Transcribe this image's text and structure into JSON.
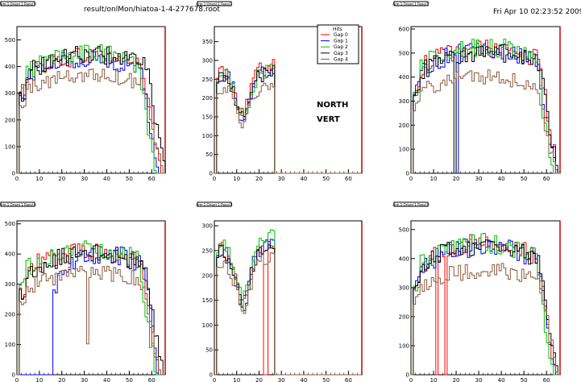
{
  "header": {
    "file_label": "result/onlMon/hiatoa-1-4-277678.root",
    "timestamp": "Fri Apr 10 02:23:52 2009"
  },
  "colors": {
    "gap0": "#ff0000",
    "gap1": "#0000ff",
    "gap2": "#00c000",
    "gap3": "#000000",
    "gap4": "#8b5a3c",
    "frame_edge": "#cc0000"
  },
  "legend": {
    "title": "Hits",
    "entries": [
      "Gap 0",
      "Gap 1",
      "Gap 2",
      "Gap 3",
      "Gap 4"
    ]
  },
  "annotations": {
    "line1": "NORTH",
    "line2": "VERT"
  },
  "chart_data": [
    {
      "type": "line",
      "title": "Arm 1 Orient 1 Panel 0",
      "xlim": [
        0,
        66
      ],
      "ylim": [
        0,
        550
      ],
      "xticks": [
        0,
        10,
        20,
        30,
        40,
        50,
        60
      ],
      "yticks": [
        0,
        100,
        200,
        300,
        400,
        500
      ],
      "grid": false,
      "series": [
        {
          "name": "Gap 0",
          "shape": "arch",
          "level": 440,
          "start": 1,
          "end": 63
        },
        {
          "name": "Gap 1",
          "shape": "arch",
          "level": 430,
          "start": 1,
          "end": 62
        },
        {
          "name": "Gap 2",
          "shape": "arch",
          "level": 450,
          "start": 1,
          "end": 61
        },
        {
          "name": "Gap 3",
          "shape": "arch",
          "level": 445,
          "start": 1,
          "end": 65
        },
        {
          "name": "Gap 4",
          "shape": "arch",
          "level": 370,
          "start": 1,
          "end": 64
        }
      ]
    },
    {
      "type": "line",
      "title": "Arm 1 Orient 1 Panel 1",
      "xlim": [
        0,
        66
      ],
      "ylim": [
        0,
        390
      ],
      "xticks": [
        0,
        10,
        20,
        30,
        40,
        50,
        60
      ],
      "yticks": [
        0,
        50,
        100,
        150,
        200,
        250,
        300,
        350
      ],
      "grid": false,
      "series": [
        {
          "name": "Gap 0",
          "shape": "dip",
          "level": 260,
          "start": 1,
          "end": 26
        },
        {
          "name": "Gap 1",
          "shape": "dip",
          "level": 250,
          "start": 1,
          "end": 26
        },
        {
          "name": "Gap 2",
          "shape": "dip",
          "level": 250,
          "start": 1,
          "end": 26
        },
        {
          "name": "Gap 3",
          "shape": "dip",
          "level": 245,
          "start": 1,
          "end": 26
        },
        {
          "name": "Gap 4",
          "shape": "dip",
          "level": 215,
          "start": 1,
          "end": 26
        }
      ]
    },
    {
      "type": "line",
      "title": "Arm 1 Orient 1 Panel 2",
      "xlim": [
        0,
        66
      ],
      "ylim": [
        0,
        610
      ],
      "xticks": [
        0,
        10,
        20,
        30,
        40,
        50,
        60
      ],
      "yticks": [
        0,
        100,
        200,
        300,
        400,
        500,
        600
      ],
      "grid": false,
      "series": [
        {
          "name": "Gap 0",
          "shape": "arch",
          "level": 520,
          "start": 1,
          "end": 64
        },
        {
          "name": "Gap 1",
          "shape": "arch",
          "level": 510,
          "start": 1,
          "end": 63,
          "gap_bins": [
            20
          ]
        },
        {
          "name": "Gap 2",
          "shape": "arch",
          "level": 525,
          "start": 1,
          "end": 62
        },
        {
          "name": "Gap 3",
          "shape": "arch",
          "level": 500,
          "start": 1,
          "end": 64,
          "gap_bins": [
            19
          ]
        },
        {
          "name": "Gap 4",
          "shape": "arch",
          "level": 400,
          "start": 1,
          "end": 63
        }
      ]
    },
    {
      "type": "line",
      "title": "Arm 1 Orient 1 Panel 3",
      "xlim": [
        0,
        66
      ],
      "ylim": [
        0,
        510
      ],
      "xticks": [
        0,
        10,
        20,
        30,
        40,
        50,
        60
      ],
      "yticks": [
        0,
        100,
        200,
        300,
        400,
        500
      ],
      "grid": false,
      "series": [
        {
          "name": "Gap 0",
          "shape": "arch",
          "level": 410,
          "start": 1,
          "end": 62
        },
        {
          "name": "Gap 1",
          "shape": "arch",
          "level": 400,
          "start": 16,
          "end": 62
        },
        {
          "name": "Gap 2",
          "shape": "arch",
          "level": 420,
          "start": 1,
          "end": 61
        },
        {
          "name": "Gap 3",
          "shape": "arch",
          "level": 400,
          "start": 1,
          "end": 64
        },
        {
          "name": "Gap 4",
          "shape": "arch",
          "level": 340,
          "start": 1,
          "end": 63,
          "dip_bin": 31
        }
      ]
    },
    {
      "type": "line",
      "title": "Arm 1 Orient 1 Panel 4",
      "xlim": [
        0,
        66
      ],
      "ylim": [
        0,
        310
      ],
      "xticks": [
        0,
        10,
        20,
        30,
        40,
        50,
        60
      ],
      "yticks": [
        0,
        50,
        100,
        150,
        200,
        250,
        300
      ],
      "grid": false,
      "series": [
        {
          "name": "Gap 0",
          "shape": "dip",
          "level": 240,
          "start": 1,
          "end": 26,
          "gap_bins": [
            22,
            23
          ]
        },
        {
          "name": "Gap 1",
          "shape": "dip",
          "level": 240,
          "start": 1,
          "end": 26
        },
        {
          "name": "Gap 2",
          "shape": "dip",
          "level": 245,
          "start": 1,
          "end": 26
        },
        {
          "name": "Gap 3",
          "shape": "dip",
          "level": 235,
          "start": 1,
          "end": 26
        },
        {
          "name": "Gap 4",
          "shape": "dip",
          "level": 215,
          "start": 1,
          "end": 26
        }
      ]
    },
    {
      "type": "line",
      "title": "Arm 1 Orient 1 Panel 3",
      "xlim": [
        0,
        66
      ],
      "ylim": [
        0,
        530
      ],
      "xticks": [
        0,
        10,
        20,
        30,
        40,
        50,
        60
      ],
      "yticks": [
        0,
        100,
        200,
        300,
        400,
        500
      ],
      "grid": false,
      "series": [
        {
          "name": "Gap 0",
          "shape": "arch",
          "level": 450,
          "start": 1,
          "end": 63,
          "gap_bins": [
            11,
            15
          ]
        },
        {
          "name": "Gap 1",
          "shape": "arch",
          "level": 440,
          "start": 1,
          "end": 63
        },
        {
          "name": "Gap 2",
          "shape": "arch",
          "level": 455,
          "start": 1,
          "end": 62
        },
        {
          "name": "Gap 3",
          "shape": "arch",
          "level": 445,
          "start": 1,
          "end": 64
        },
        {
          "name": "Gap 4",
          "shape": "arch",
          "level": 360,
          "start": 1,
          "end": 64
        }
      ]
    }
  ]
}
